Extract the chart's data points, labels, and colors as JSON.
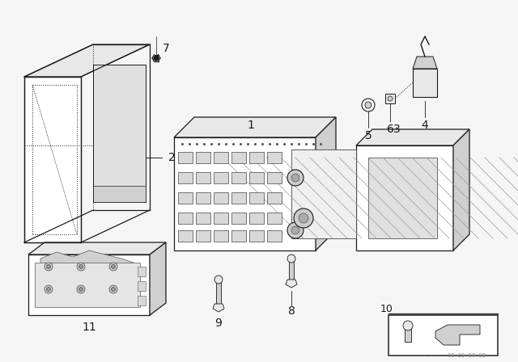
{
  "bg_color": "#ffffff",
  "line_color": "#1a1a1a",
  "dashed_color": "#555555",
  "part_label_size": 9,
  "watermark": "00 19 07 08",
  "img_bg": "#f5f5f5"
}
